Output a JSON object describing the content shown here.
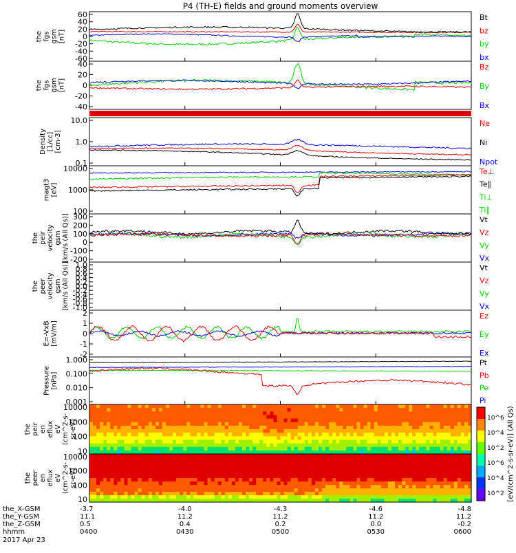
{
  "title": "P4 (TH-E) fields and ground moments overview",
  "colors": {
    "black": "#000000",
    "red": "#e00000",
    "green": "#00cc00",
    "blue": "#0000dd"
  },
  "panels": [
    {
      "id": "fgs-gsm",
      "ylabel": [
        "the",
        "fgs",
        "gsm",
        "[nT]"
      ],
      "ticks": [
        "60",
        "40",
        "20",
        "0",
        "-20",
        "-40",
        "-60"
      ],
      "legend": [
        {
          "text": "Bt",
          "color": "black"
        },
        {
          "text": "bz",
          "color": "red"
        },
        {
          "text": "by",
          "color": "green"
        },
        {
          "text": "bx",
          "color": "blue"
        }
      ]
    },
    {
      "id": "fgs-gse",
      "ylabel": [
        "the",
        "fgs",
        "gsm",
        "[nT]"
      ],
      "ticks": [
        "40",
        "20",
        "0",
        "-20",
        "-40"
      ],
      "legend": [
        {
          "text": "Bz",
          "color": "red"
        },
        {
          "text": "By",
          "color": "green"
        },
        {
          "text": "Bx",
          "color": "blue"
        }
      ]
    },
    {
      "id": "red-bar",
      "ylabel": [],
      "ticks": [],
      "legend": []
    },
    {
      "id": "density",
      "ylabel": [
        "Density",
        "[1/cc]",
        "[cm-3]"
      ],
      "ticks": [
        "10.0",
        "1.0",
        "0.1"
      ],
      "legend": [
        {
          "text": "Ne",
          "color": "red"
        },
        {
          "text": "Ni",
          "color": "black"
        },
        {
          "text": "Npot",
          "color": "blue"
        }
      ]
    },
    {
      "id": "temperature",
      "ylabel": [
        "magt3",
        "[eV]"
      ],
      "ticks": [
        "10000",
        "1000",
        "100"
      ],
      "legend": [
        {
          "text": "Te⊥",
          "color": "red"
        },
        {
          "text": "Te∥",
          "color": "black"
        },
        {
          "text": "Ti⊥",
          "color": "green"
        },
        {
          "text": "Ti∥",
          "color": "green"
        }
      ]
    },
    {
      "id": "peir-vel",
      "ylabel": [
        "the",
        "peir",
        "velocity",
        "gsm",
        "[km/s (All Qs)]"
      ],
      "ticks": [
        "300",
        "200",
        "100",
        "0",
        "-100",
        "-200"
      ],
      "legend": [
        {
          "text": "Vt",
          "color": "black"
        },
        {
          "text": "Vz",
          "color": "red"
        },
        {
          "text": "Vy",
          "color": "green"
        },
        {
          "text": "Vx",
          "color": "blue"
        }
      ]
    },
    {
      "id": "peer-vel",
      "ylabel": [
        "the",
        "peer",
        "velocity",
        "gsm",
        "[km/s (All Qs)]"
      ],
      "ticks": [
        "1.0",
        "0.8",
        "0.6",
        "0.4",
        "0.2",
        "0.0",
        "-0.2",
        "-0.4",
        "-0.6",
        "-0.8",
        "-1.0"
      ],
      "legend": [
        {
          "text": "Vt",
          "color": "black"
        },
        {
          "text": "Vz",
          "color": "red"
        },
        {
          "text": "Vy",
          "color": "green"
        },
        {
          "text": "Vx",
          "color": "blue"
        }
      ]
    },
    {
      "id": "efield",
      "ylabel": [
        "E=-VxB",
        "[mV/m]"
      ],
      "ticks": [
        "2",
        "1",
        "0",
        "-1",
        "-2"
      ],
      "legend": [
        {
          "text": "Ez",
          "color": "red"
        },
        {
          "text": "Ey",
          "color": "green"
        },
        {
          "text": "Ex",
          "color": "blue"
        }
      ]
    },
    {
      "id": "pressure",
      "ylabel": [
        "Pressure",
        "[nPa]"
      ],
      "ticks": [
        "1.000",
        "0.100",
        "0.010",
        "0.001"
      ],
      "legend": [
        {
          "text": "Pt",
          "color": "black"
        },
        {
          "text": "Pb",
          "color": "red"
        },
        {
          "text": "Pe",
          "color": "green"
        },
        {
          "text": "Pi",
          "color": "blue"
        }
      ]
    },
    {
      "id": "peir-spec",
      "ylabel": [
        "the",
        "peir",
        "en",
        "eflux",
        "eV",
        "(cm^2-s-",
        "sr-eV)"
      ],
      "ticks": [
        "10000",
        "1000",
        "100",
        "10"
      ],
      "legend": []
    },
    {
      "id": "peer-spec",
      "ylabel": [
        "the",
        "peer",
        "en",
        "eflux",
        "eV",
        "(cm^2-s-",
        "sr-eV)"
      ],
      "ticks": [
        "10000",
        "1000",
        "100",
        "10"
      ],
      "legend": []
    }
  ],
  "colorbar": {
    "ticks": [
      "10^6",
      "10^4",
      "10^2",
      "10^6",
      "10^4",
      "10^2"
    ],
    "label": "[eV/(cm^2-s-sr-eV)] (All Qs)"
  },
  "xaxis": {
    "rows": [
      {
        "name": "the_X-GSM",
        "values": [
          "-3.7",
          "-4.0",
          "-4.3",
          "-4.6",
          "-4.8"
        ]
      },
      {
        "name": "the_Y-GSM",
        "values": [
          "11.1",
          "11.2",
          "11.2",
          "11.2",
          "11.2"
        ]
      },
      {
        "name": "the_Z-GSM",
        "values": [
          "0.5",
          "0.4",
          "0.2",
          "0.0",
          "-0.2"
        ]
      },
      {
        "name": "hhmm",
        "values": [
          "0400",
          "0430",
          "0500",
          "0530",
          "0600"
        ]
      }
    ],
    "date": "2017 Apr 23"
  },
  "chart_data": {
    "type": "line",
    "title": "P4 (TH-E) fields and ground moments overview",
    "x": [
      "0400",
      "0430",
      "0500",
      "0530",
      "0600"
    ],
    "series": [
      {
        "name": "Bt",
        "values": [
          15,
          15,
          40,
          12,
          15
        ]
      },
      {
        "name": "bz",
        "values": [
          10,
          12,
          5,
          8,
          5
        ]
      },
      {
        "name": "by",
        "values": [
          -5,
          -20,
          5,
          -5,
          10
        ]
      },
      {
        "name": "bx",
        "values": [
          5,
          0,
          -5,
          -3,
          -10
        ]
      },
      {
        "name": "Ne",
        "values": [
          0.6,
          0.7,
          1.0,
          0.3,
          0.3
        ]
      },
      {
        "name": "Ni",
        "values": [
          0.5,
          0.6,
          0.8,
          0.2,
          0.2
        ]
      },
      {
        "name": "Npot",
        "values": [
          0.6,
          1.0,
          1.2,
          0.6,
          0.5
        ]
      },
      {
        "name": "Pt",
        "values": [
          0.5,
          0.6,
          0.7,
          0.5,
          0.6
        ]
      },
      {
        "name": "Pb",
        "values": [
          0.2,
          0.2,
          0.05,
          0.04,
          0.1
        ]
      },
      {
        "name": "Pe",
        "values": [
          0.15,
          0.15,
          0.1,
          0.15,
          0.15
        ]
      }
    ]
  }
}
